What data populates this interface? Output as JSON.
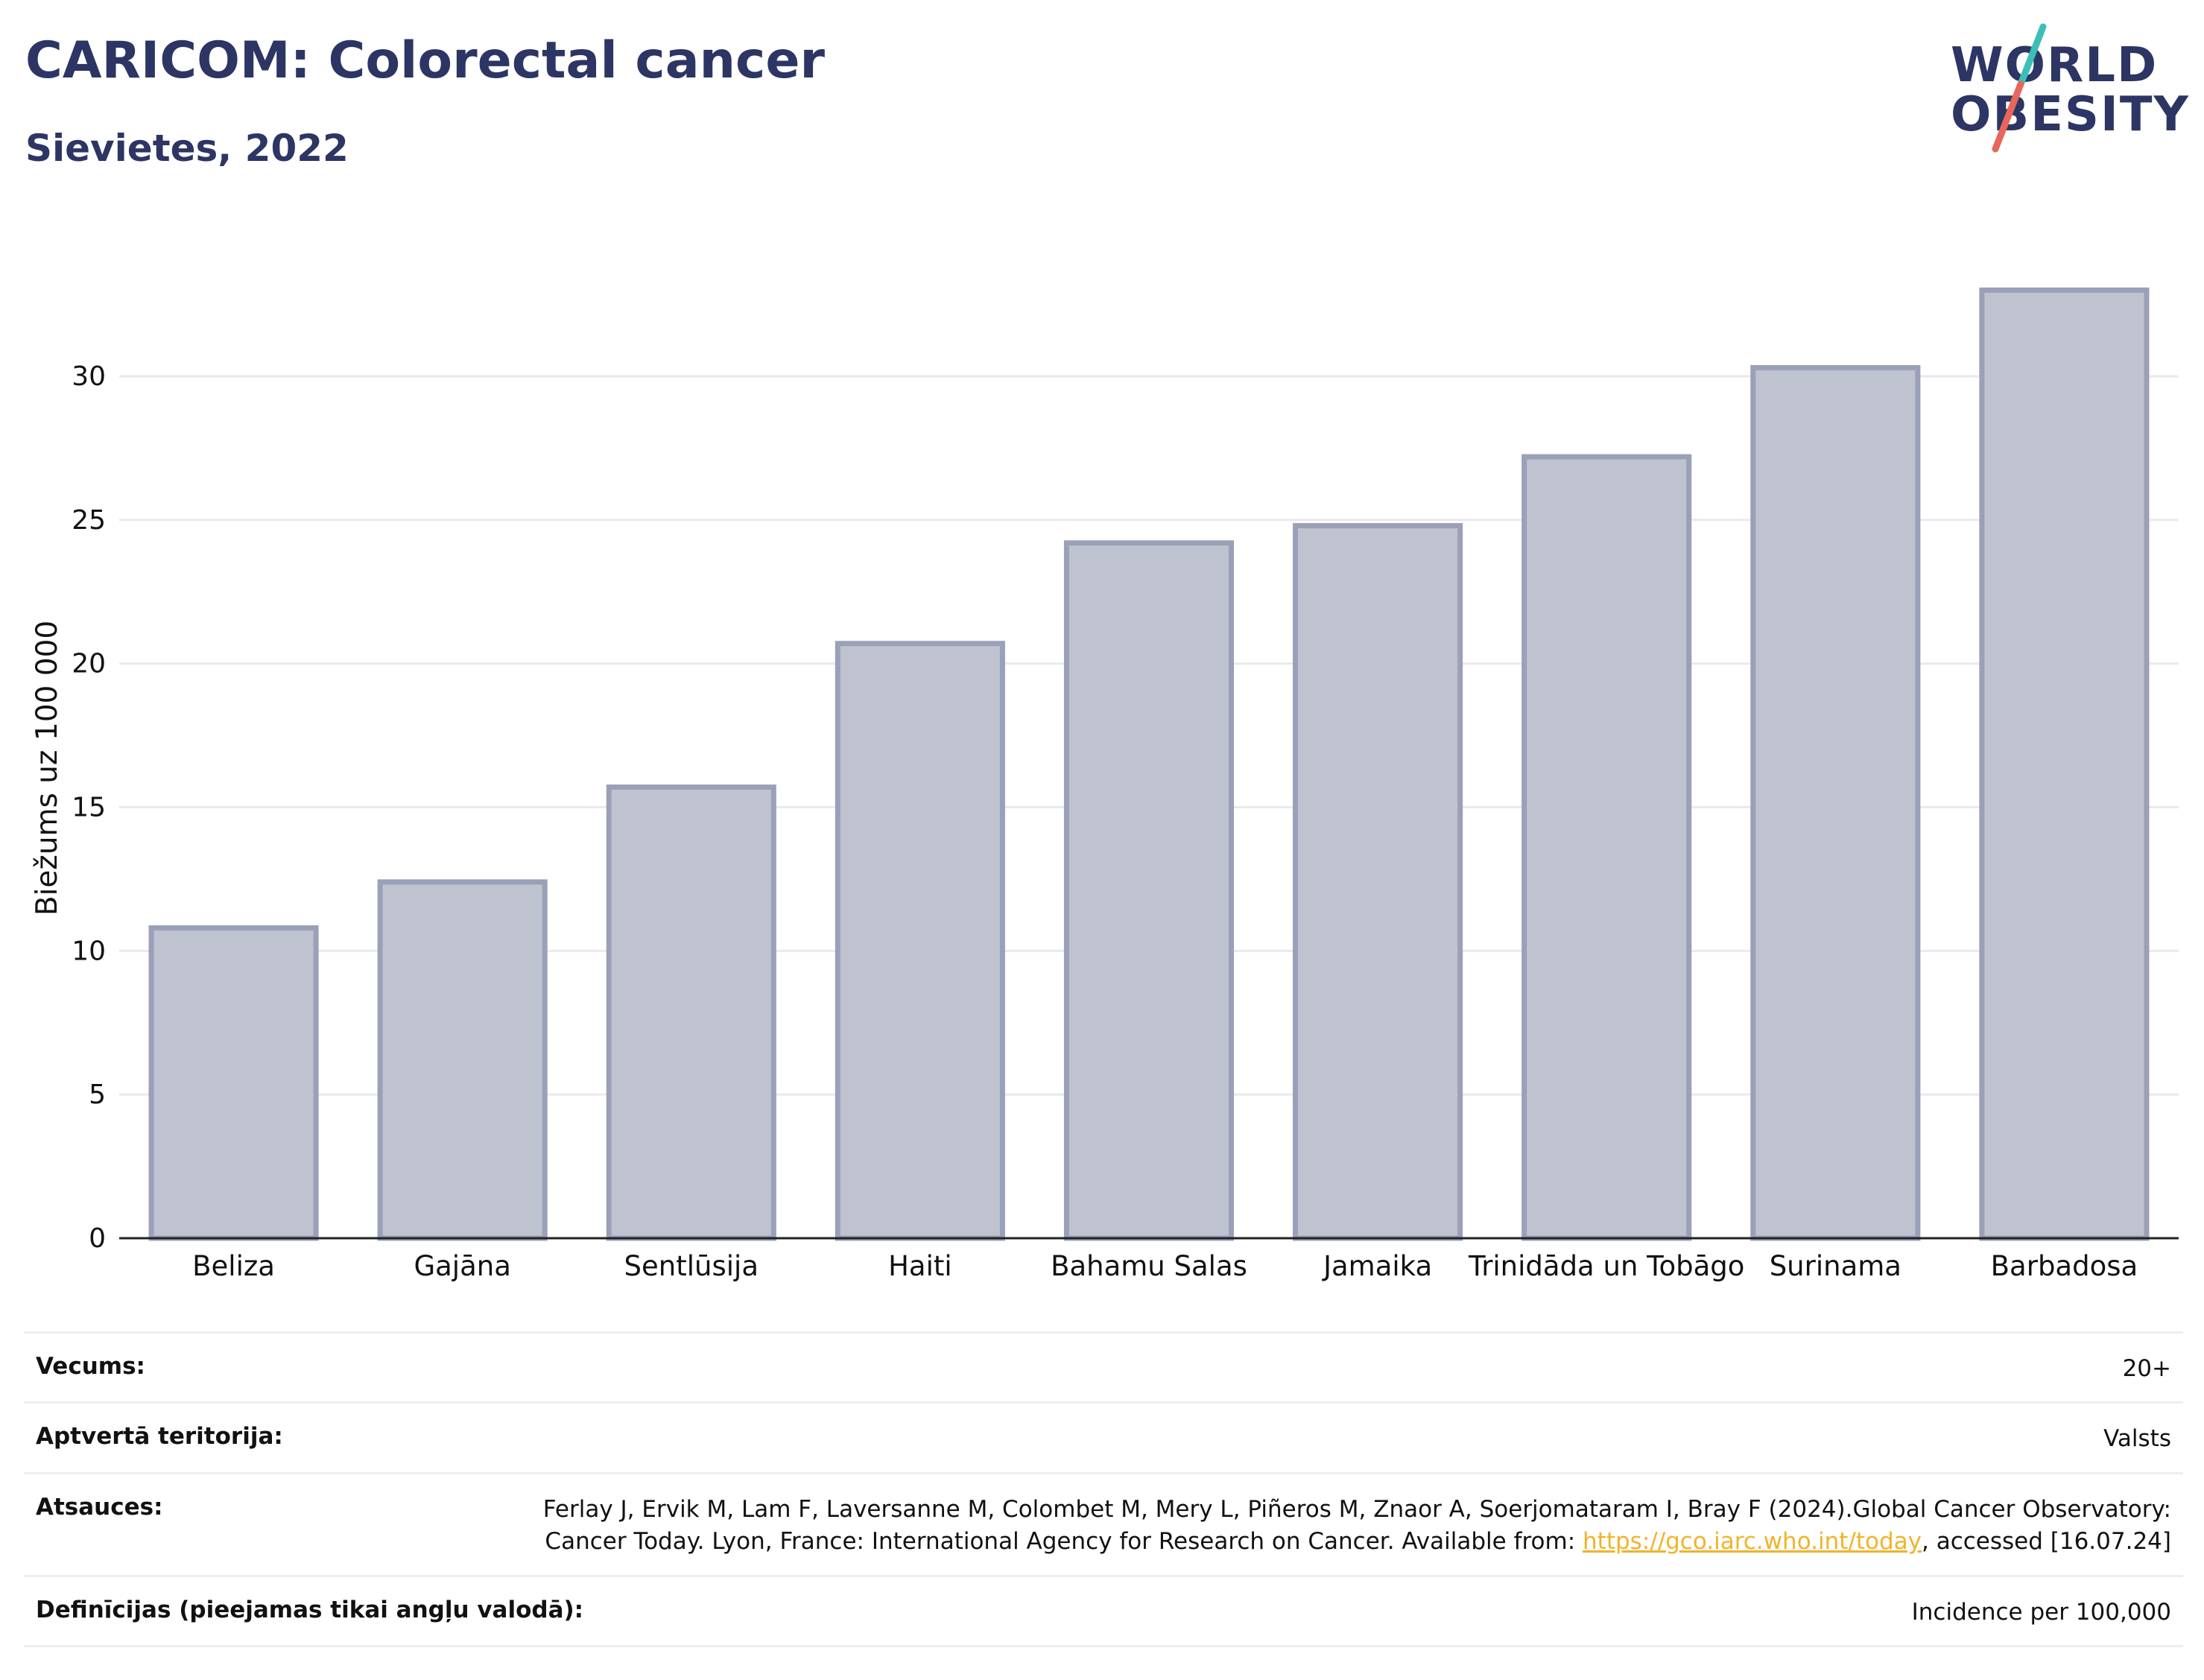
{
  "header": {
    "title": "CARICOM: Colorectal cancer",
    "subtitle": "Sievietes, 2022"
  },
  "logo": {
    "line1": "WORLD",
    "line2": "OBESITY",
    "accent_teal": "#3bbfb6",
    "accent_coral": "#e8665a"
  },
  "chart_data": {
    "type": "bar",
    "categories": [
      "Beliza",
      "Gajāna",
      "Sentlūsija",
      "Haiti",
      "Bahamu Salas",
      "Jamaika",
      "Trinidāda un Tobāgo",
      "Surinama",
      "Barbadosa"
    ],
    "values": [
      10.8,
      12.4,
      15.7,
      20.7,
      24.2,
      24.8,
      27.2,
      30.3,
      33.0
    ],
    "ylabel": "Biežums uz 100 000",
    "xlabel": "",
    "ylim": [
      0,
      34.8
    ],
    "yticks": [
      0,
      5,
      10,
      15,
      20,
      25,
      30
    ],
    "grid": true,
    "bar_fill": "#bfc2cf",
    "bar_stroke": "#9aa0b8",
    "axis_color": "#222222",
    "grid_color": "#e9e9ee"
  },
  "meta": {
    "rows": [
      {
        "label": "Vecums:",
        "value": "20+"
      },
      {
        "label": "Aptvertā teritorija:",
        "value": "Valsts"
      }
    ],
    "references": {
      "label": "Atsauces:",
      "text_before": "Ferlay J, Ervik M, Lam F, Laversanne M, Colombet M, Mery L, Piñeros M, Znaor A, Soerjomataram I, Bray F (2024).Global Cancer Observatory: Cancer Today. Lyon, France: International Agency for Research on Cancer. Available from: ",
      "link": "https://gco.iarc.who.int/today",
      "text_after": ", accessed [16.07.24]"
    },
    "definitions": {
      "label": "Definīcijas (pieejamas tikai angļu valodā):",
      "value": "Incidence per 100,000"
    }
  }
}
